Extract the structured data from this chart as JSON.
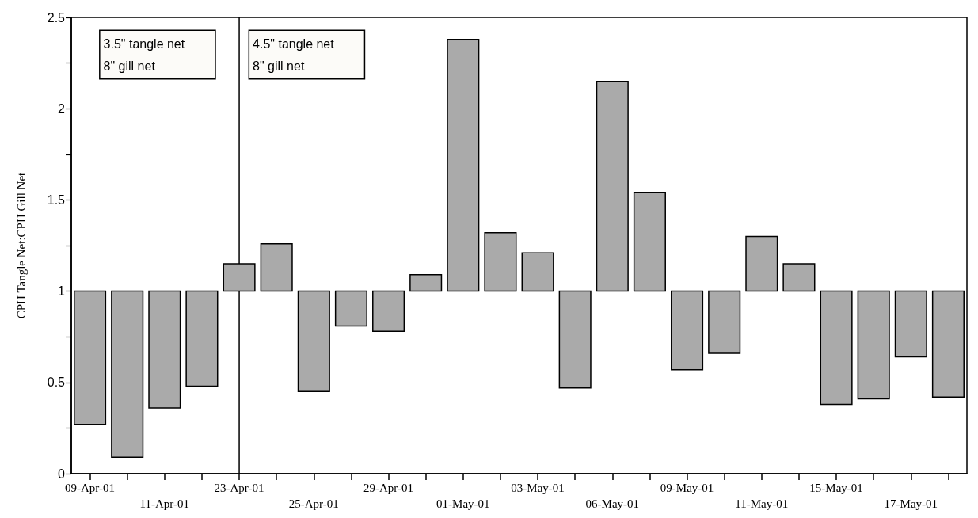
{
  "chart_data": {
    "type": "bar",
    "categories": [
      "09-Apr-01",
      null,
      "11-Apr-01",
      null,
      "23-Apr-01",
      null,
      "25-Apr-01",
      null,
      "29-Apr-01",
      null,
      "01-May-01",
      null,
      "03-May-01",
      null,
      "06-May-01",
      null,
      "09-May-01",
      null,
      "11-May-01",
      null,
      "15-May-01",
      null,
      "17-May-01",
      null
    ],
    "base": [
      1,
      1,
      1,
      1,
      1,
      1,
      1,
      1,
      1,
      1,
      1,
      1,
      1,
      1,
      1,
      1,
      1,
      1,
      1,
      1,
      1,
      1,
      1,
      1
    ],
    "values": [
      -0.73,
      -0.91,
      -0.64,
      -0.52,
      0.15,
      0.26,
      -0.55,
      -0.19,
      -0.22,
      0.09,
      1.38,
      0.32,
      0.21,
      -0.53,
      1.15,
      0.54,
      -0.43,
      -0.34,
      0.3,
      0.15,
      -0.62,
      -0.59,
      -0.36,
      -0.58
    ],
    "color": "#aaaaaa",
    "ylabel": "CPH Tangle Net:CPH Gill Net",
    "ylim": [
      0,
      2.5
    ],
    "yticks": [
      0,
      {
        "value": 0.25,
        "label": null
      },
      0.5,
      {
        "value": 0.75,
        "label": null
      },
      1,
      {
        "value": 1.25,
        "label": null
      },
      1.5,
      {
        "value": 1.75,
        "label": null
      },
      2,
      {
        "value": 2.25,
        "label": null
      },
      2.5
    ],
    "grid": "y",
    "annotations": [
      "3.5\" tangle net\n8\" gill net",
      "4.5\" tangle net\n8\" gill net"
    ]
  }
}
